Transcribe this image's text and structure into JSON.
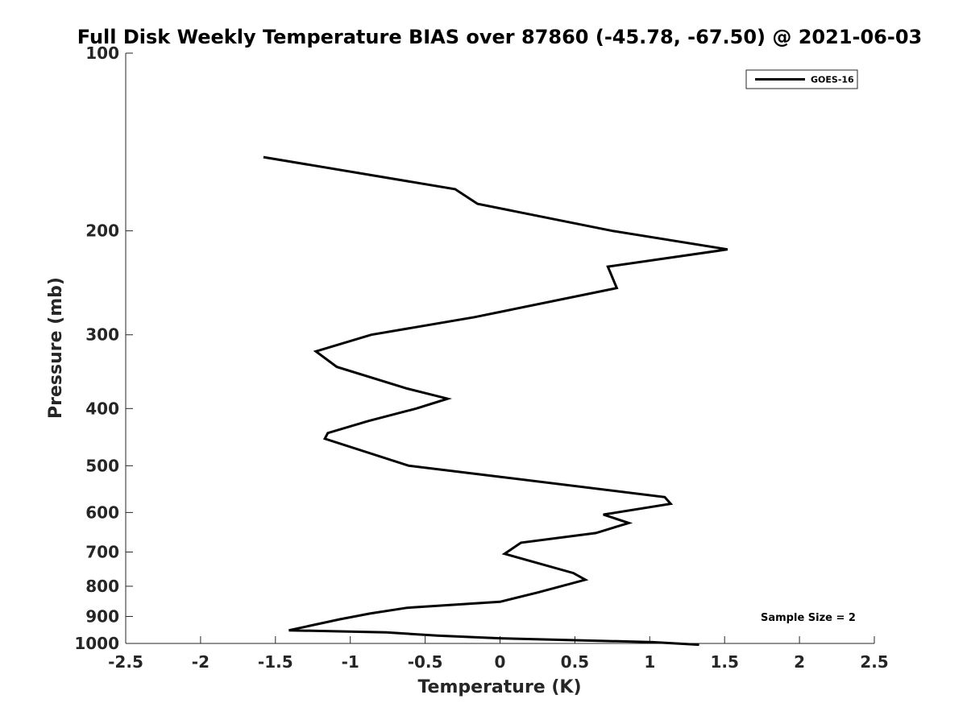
{
  "chart_data": {
    "type": "line",
    "title": "Full Disk Weekly Temperature BIAS over 87860 (-45.78, -67.50) @ 2021-06-03",
    "xlabel": "Temperature (K)",
    "ylabel": "Pressure (mb)",
    "xlim": [
      -2.5,
      2.5
    ],
    "ylim": [
      1000,
      100
    ],
    "yscale": "log",
    "y_reversed": true,
    "grid": false,
    "legend_position": "top-right",
    "x_ticks": [
      -2.5,
      -2,
      -1.5,
      -1,
      -0.5,
      0,
      0.5,
      1,
      1.5,
      2,
      2.5
    ],
    "x_tick_labels": [
      "-2.5",
      "-2",
      "-1.5",
      "-1",
      "-0.5",
      "0",
      "0.5",
      "1",
      "1.5",
      "2",
      "2.5"
    ],
    "y_ticks": [
      100,
      200,
      300,
      400,
      500,
      600,
      700,
      800,
      900,
      1000
    ],
    "y_tick_labels": [
      "100",
      "200",
      "300",
      "400",
      "500",
      "600",
      "700",
      "800",
      "900",
      "1000"
    ],
    "annotation": "Sample Size = 2",
    "series": [
      {
        "name": "GOES-16",
        "color": "#000000",
        "x": [
          -1.58,
          -0.3,
          -0.15,
          0.75,
          1.52,
          0.72,
          0.78,
          -0.17,
          -0.86,
          -1.23,
          -1.09,
          -0.62,
          -0.35,
          -0.56,
          -0.88,
          -1.15,
          -1.17,
          -0.61,
          0.0,
          1.1,
          1.14,
          0.69,
          0.86,
          0.64,
          0.14,
          0.03,
          0.49,
          0.57,
          0.25,
          0.0,
          -0.62,
          -0.87,
          -1.07,
          -1.41,
          -0.76,
          -0.42,
          0.0,
          1.02,
          1.33
        ],
        "y": [
          150,
          170,
          180,
          200,
          215,
          230,
          250,
          280,
          300,
          320,
          340,
          370,
          385,
          400,
          420,
          440,
          450,
          500,
          522,
          565,
          580,
          605,
          625,
          650,
          675,
          705,
          760,
          780,
          820,
          850,
          870,
          890,
          910,
          950,
          958,
          970,
          980,
          995,
          1005
        ]
      }
    ]
  }
}
